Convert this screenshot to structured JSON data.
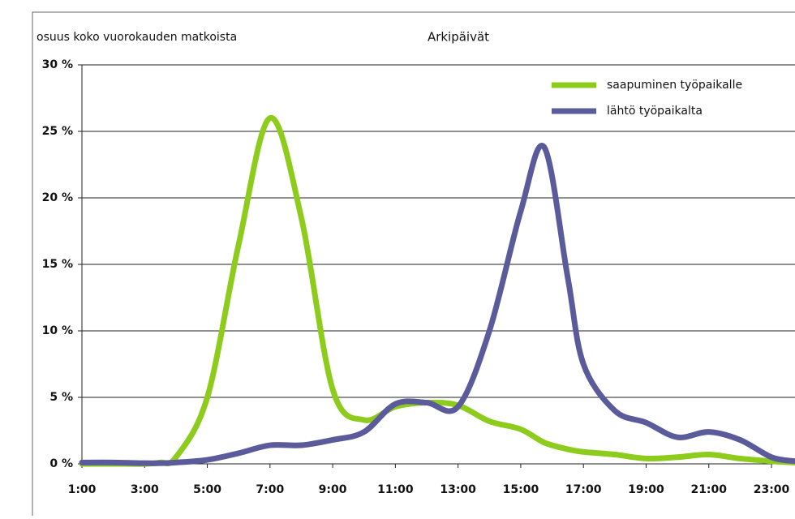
{
  "chart_data": {
    "type": "line",
    "title": "Arkipäivät",
    "y_label": "osuus koko vuorokauden matkoista",
    "x": [
      1,
      2,
      3,
      3.5,
      4,
      5,
      6,
      7,
      8,
      9,
      10,
      11,
      12,
      13,
      14,
      15,
      15.75,
      16.5,
      17,
      18,
      19,
      20,
      21,
      22,
      23,
      23.75
    ],
    "series": [
      {
        "name": "saapuminen työpaikalle",
        "color": "#8dcc1c",
        "values": [
          0,
          0,
          0,
          0.1,
          0.5,
          5,
          16.5,
          26,
          18.5,
          5.6,
          3.3,
          4.3,
          4.6,
          4.4,
          3.2,
          2.6,
          1.6,
          1.1,
          0.9,
          0.7,
          0.4,
          0.5,
          0.7,
          0.4,
          0.2,
          0.1
        ]
      },
      {
        "name": "lähtö työpaikalta",
        "color": "#5b5b9c",
        "values": [
          0.1,
          0.1,
          0.05,
          0.05,
          0.1,
          0.3,
          0.8,
          1.4,
          1.4,
          1.8,
          2.4,
          4.5,
          4.6,
          4.3,
          10,
          19,
          23.8,
          14,
          7.5,
          4,
          3.1,
          2,
          2.4,
          1.8,
          0.5,
          0.2
        ]
      }
    ],
    "xlim": [
      1,
      23.75
    ],
    "xticks": [
      {
        "value": 1,
        "label": "1:00"
      },
      {
        "value": 3,
        "label": "3:00"
      },
      {
        "value": 5,
        "label": "5:00"
      },
      {
        "value": 7,
        "label": "7:00"
      },
      {
        "value": 9,
        "label": "9:00"
      },
      {
        "value": 11,
        "label": "11:00"
      },
      {
        "value": 13,
        "label": "13:00"
      },
      {
        "value": 15,
        "label": "15:00"
      },
      {
        "value": 17,
        "label": "17:00"
      },
      {
        "value": 19,
        "label": "19:00"
      },
      {
        "value": 21,
        "label": "21:00"
      },
      {
        "value": 23,
        "label": "23:00"
      }
    ],
    "ylim": [
      0,
      30
    ],
    "yticks": [
      {
        "value": 0,
        "label": "0 %"
      },
      {
        "value": 5,
        "label": "5 %"
      },
      {
        "value": 10,
        "label": "10 %"
      },
      {
        "value": 15,
        "label": "15 %"
      },
      {
        "value": 20,
        "label": "20 %"
      },
      {
        "value": 25,
        "label": "25 %"
      },
      {
        "value": 30,
        "label": "30 %"
      }
    ],
    "grid": true,
    "legend": "upper right"
  }
}
